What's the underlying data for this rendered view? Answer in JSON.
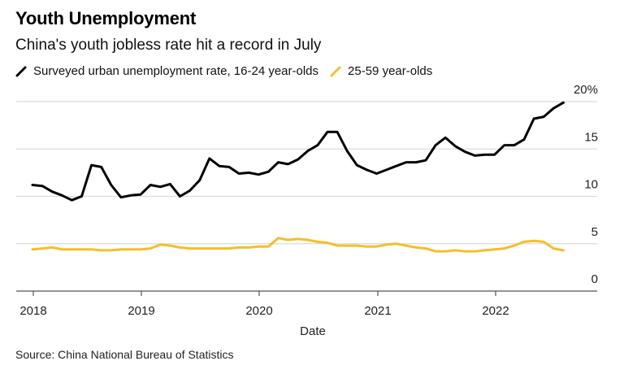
{
  "header": {
    "title": "Youth Unemployment",
    "subtitle": "China's youth jobless rate hit a record in July"
  },
  "footer": {
    "source": "Source: China National Bureau of Statistics"
  },
  "chart_data": {
    "type": "line",
    "title": "Youth Unemployment",
    "subtitle": "China's youth jobless rate hit a record in July",
    "xlabel": "Date",
    "ylabel": "",
    "ylim": [
      0,
      20
    ],
    "yticks": [
      0,
      5,
      10,
      15,
      20
    ],
    "ytick_labels": [
      "0",
      "5",
      "10",
      "15",
      "20%"
    ],
    "xticks": [
      "2018",
      "2019",
      "2020",
      "2021",
      "2022"
    ],
    "x_start": "2018-01",
    "x_end": "2022-07",
    "x_frequency": "monthly",
    "grid": true,
    "legend_position": "top-left",
    "series": [
      {
        "name": "Surveyed urban unemployment rate, 16-24 year-olds",
        "color": "#000000",
        "values": [
          11.2,
          11.1,
          10.5,
          10.1,
          9.6,
          10.0,
          13.3,
          13.1,
          11.2,
          9.9,
          10.1,
          10.2,
          11.2,
          11.0,
          11.3,
          10.0,
          10.6,
          11.7,
          14.0,
          13.2,
          13.1,
          12.4,
          12.5,
          12.3,
          12.6,
          13.6,
          13.4,
          13.9,
          14.8,
          15.4,
          16.8,
          16.8,
          14.8,
          13.3,
          12.8,
          12.4,
          12.8,
          13.2,
          13.6,
          13.6,
          13.8,
          15.4,
          16.2,
          15.3,
          14.7,
          14.3,
          14.4,
          14.4,
          15.4,
          15.4,
          16.0,
          18.2,
          18.4,
          19.3,
          19.9
        ]
      },
      {
        "name": "25-59 year-olds",
        "color": "#f5bf2a",
        "values": [
          4.4,
          4.5,
          4.6,
          4.4,
          4.4,
          4.4,
          4.4,
          4.3,
          4.3,
          4.4,
          4.4,
          4.4,
          4.5,
          4.9,
          4.8,
          4.6,
          4.5,
          4.5,
          4.5,
          4.5,
          4.5,
          4.6,
          4.6,
          4.7,
          4.7,
          5.6,
          5.4,
          5.5,
          5.4,
          5.2,
          5.1,
          4.8,
          4.8,
          4.8,
          4.7,
          4.7,
          4.9,
          5.0,
          4.8,
          4.6,
          4.5,
          4.2,
          4.2,
          4.3,
          4.2,
          4.2,
          4.3,
          4.4,
          4.5,
          4.8,
          5.2,
          5.3,
          5.2,
          4.5,
          4.3
        ]
      }
    ]
  }
}
